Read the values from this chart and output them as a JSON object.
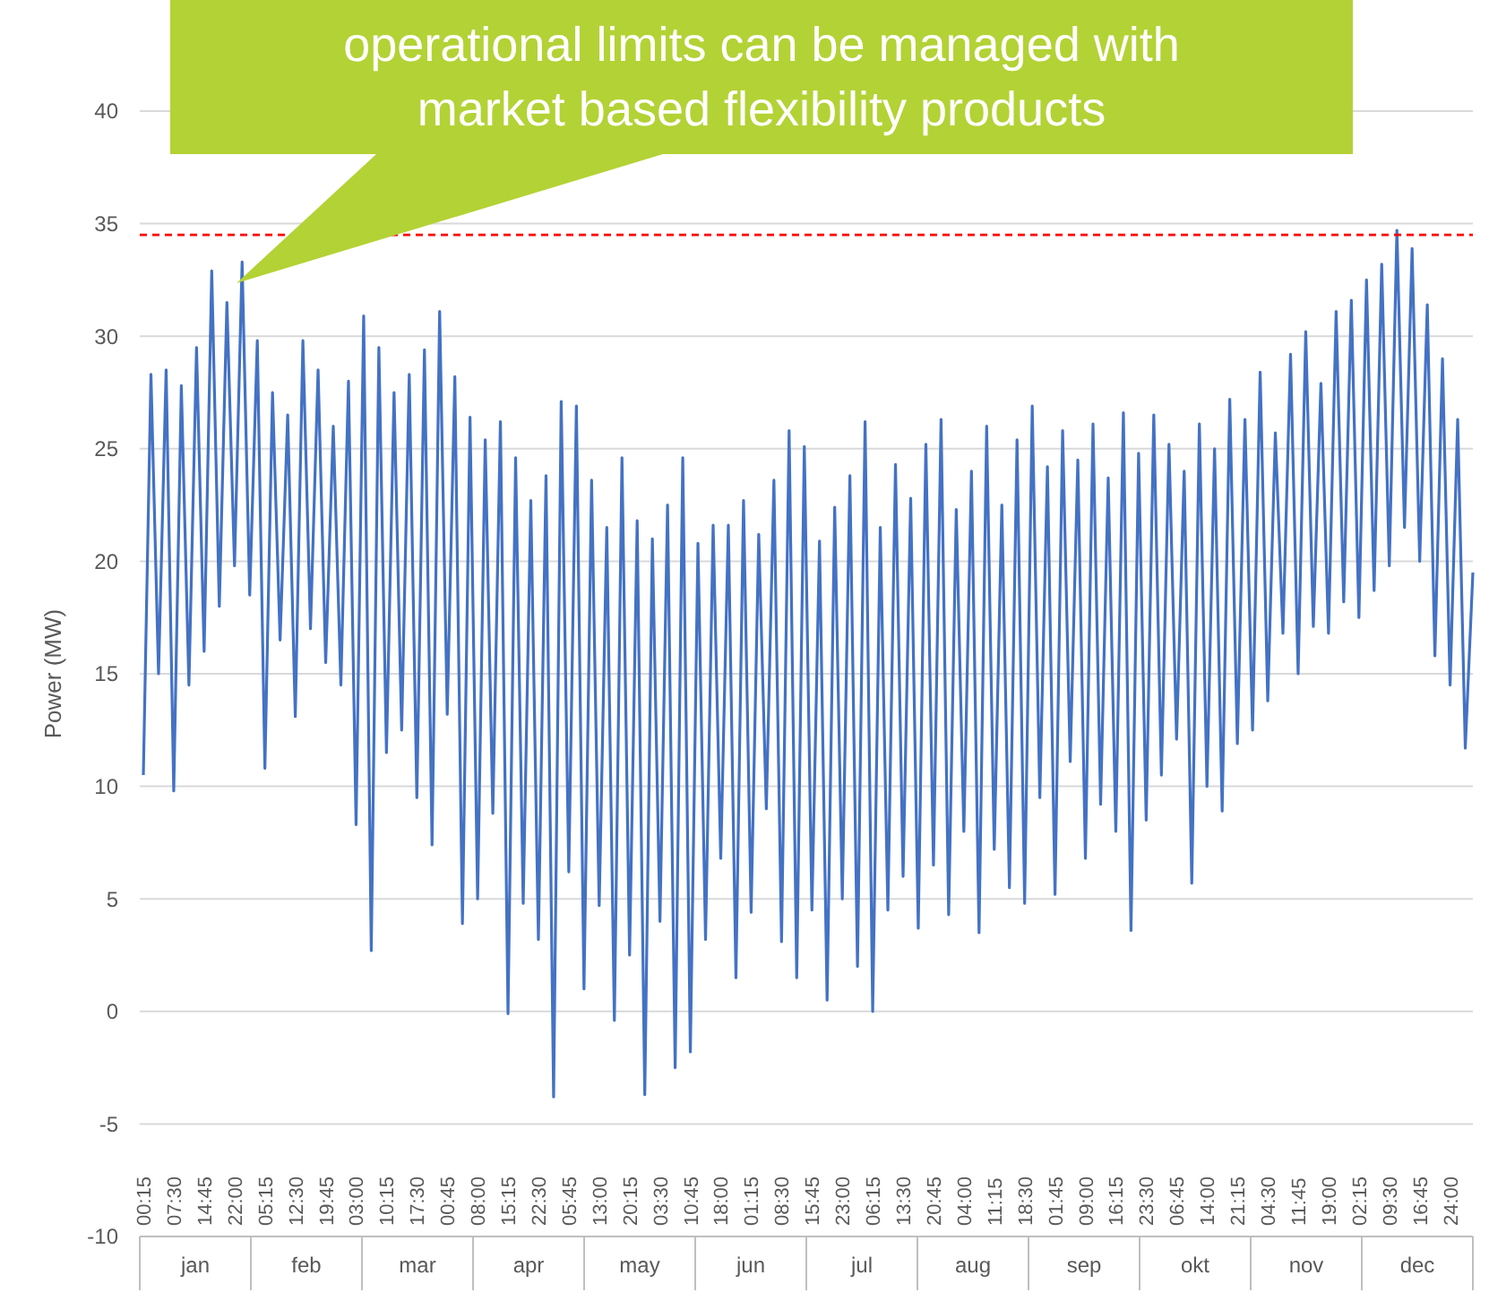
{
  "chart_data": {
    "type": "line",
    "ylabel": "Power (MW)",
    "categories": [
      "00:15",
      null,
      null,
      null,
      "07:30",
      null,
      null,
      null,
      "14:45",
      null,
      null,
      null,
      "22:00",
      null,
      null,
      null,
      "05:15",
      null,
      null,
      null,
      "12:30",
      null,
      null,
      null,
      "19:45",
      null,
      null,
      null,
      "03:00",
      null,
      null,
      null,
      "10:15",
      null,
      null,
      null,
      "17:30",
      null,
      null,
      null,
      "00:45",
      null,
      null,
      null,
      "08:00",
      null,
      null,
      null,
      "15:15",
      null,
      null,
      null,
      "22:30",
      null,
      null,
      null,
      "05:45",
      null,
      null,
      null,
      "13:00",
      null,
      null,
      null,
      "20:15",
      null,
      null,
      null,
      "03:30",
      null,
      null,
      null,
      "10:45",
      null,
      null,
      null,
      "18:00",
      null,
      null,
      null,
      "01:15",
      null,
      null,
      null,
      "08:30",
      null,
      null,
      null,
      "15:45",
      null,
      null,
      null,
      "23:00",
      null,
      null,
      null,
      "06:15",
      null,
      null,
      null,
      "13:30",
      null,
      null,
      null,
      "20:45",
      null,
      null,
      null,
      "04:00",
      null,
      null,
      null,
      "11:15",
      null,
      null,
      null,
      "18:30",
      null,
      null,
      null,
      "01:45",
      null,
      null,
      null,
      "09:00",
      null,
      null,
      null,
      "16:15",
      null,
      null,
      null,
      "23:30",
      null,
      null,
      null,
      "06:45",
      null,
      null,
      null,
      "14:00",
      null,
      null,
      null,
      "21:15",
      null,
      null,
      null,
      "04:30",
      null,
      null,
      null,
      "11:45",
      null,
      null,
      null,
      "19:00",
      null,
      null,
      null,
      "02:15",
      null,
      null,
      null,
      "09:30",
      null,
      null,
      null,
      "16:45",
      null,
      null,
      null,
      "24:00",
      null,
      null,
      null
    ],
    "series": [
      {
        "color": "#4472c4",
        "values": [
          10.5,
          28.3,
          15,
          28.5,
          9.8,
          27.8,
          14.5,
          29.5,
          16,
          32.9,
          18,
          31.5,
          19.8,
          33.3,
          18.5,
          29.8,
          10.8,
          27.5,
          16.5,
          26.5,
          13.1,
          29.8,
          17,
          28.5,
          15.5,
          26,
          14.5,
          28,
          8.3,
          30.9,
          2.7,
          29.5,
          11.5,
          27.5,
          12.5,
          28.3,
          9.5,
          29.4,
          7.4,
          31.1,
          13.2,
          28.2,
          3.9,
          26.4,
          5,
          25.4,
          8.8,
          26.2,
          -0.1,
          24.6,
          4.8,
          22.7,
          3.2,
          23.8,
          -3.8,
          27.1,
          6.2,
          26.9,
          1,
          23.6,
          4.7,
          21.5,
          -0.4,
          24.6,
          2.5,
          21.8,
          -3.7,
          21,
          4,
          22.5,
          -2.5,
          24.6,
          -1.8,
          20.8,
          3.2,
          21.6,
          6.8,
          21.6,
          1.5,
          22.7,
          4.4,
          21.2,
          9,
          23.6,
          3.1,
          25.8,
          1.5,
          25.1,
          4.5,
          20.9,
          0.5,
          22.4,
          5,
          23.8,
          2,
          26.2,
          0,
          21.5,
          4.5,
          24.3,
          6,
          22.8,
          3.7,
          25.2,
          6.5,
          26.3,
          4.3,
          22.3,
          8,
          24,
          3.5,
          26,
          7.2,
          22.5,
          5.5,
          25.4,
          4.8,
          26.9,
          9.5,
          24.2,
          5.2,
          25.8,
          11.1,
          24.5,
          6.8,
          26.1,
          9.2,
          23.7,
          8,
          26.6,
          3.6,
          24.8,
          8.5,
          26.5,
          10.5,
          25.2,
          12.1,
          24,
          5.7,
          26.1,
          10,
          25,
          8.9,
          27.2,
          11.9,
          26.3,
          12.5,
          28.4,
          13.8,
          25.7,
          16.8,
          29.2,
          15,
          30.2,
          17.1,
          27.9,
          16.8,
          31.1,
          18.2,
          31.6,
          17.5,
          32.5,
          18.7,
          33.2,
          19.8,
          34.7,
          21.5,
          33.9,
          20,
          31.4,
          15.8,
          29,
          14.5,
          26.3,
          11.7,
          19.5
        ]
      }
    ],
    "ylim": [
      -10,
      40
    ],
    "yticks": [
      -10,
      -5,
      0,
      5,
      10,
      15,
      20,
      25,
      30,
      35,
      40
    ],
    "grid": "y",
    "ref_lines": [
      {
        "axis": "y",
        "value": 34.5,
        "color": "#ff0000",
        "line_style": "dashed"
      }
    ],
    "annotations": [
      "operational limits can be managed with market based flexibility products",
      "jan",
      "feb",
      "mar",
      "apr",
      "may",
      "jun",
      "jul",
      "aug",
      "sep",
      "okt",
      "nov",
      "dec"
    ]
  }
}
